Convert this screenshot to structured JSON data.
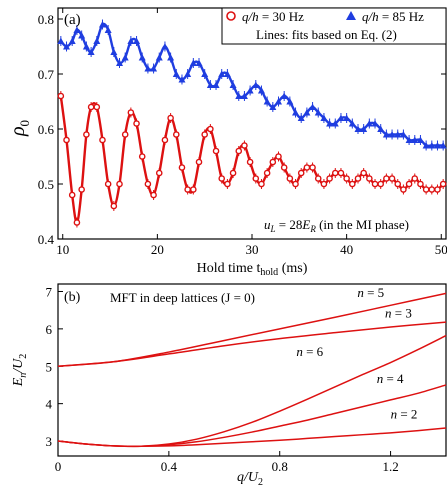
{
  "chart_data": [
    {
      "panel_label": "(a)",
      "type": "scatter",
      "xlabel": "Hold time t",
      "xlabel_sub": "hold",
      "xlabel_unit": " (ms)",
      "ylabel": "ρ",
      "ylabel_sub": "0",
      "xlim": [
        9.5,
        50.5
      ],
      "ylim": [
        0.4,
        0.82
      ],
      "xticks": [
        10,
        20,
        30,
        40,
        50
      ],
      "yticks": [
        0.4,
        0.5,
        0.6,
        0.7,
        0.8
      ],
      "ytick_labels": [
        "0.4",
        "0.5",
        "0.6",
        "0.7",
        "0.8"
      ],
      "legend": {
        "placement": "top-right",
        "entries": [
          {
            "prefix": "q/h",
            "suffix": " = 30 Hz",
            "marker": "open-circle",
            "color": "#dd1111"
          },
          {
            "prefix": "q/h",
            "suffix": " = 85 Hz",
            "marker": "filled-triangle",
            "color": "#1f3de0"
          }
        ],
        "note": "Lines: fits based on Eq. (2)"
      },
      "annotation": {
        "prefix": "u",
        "prefix_sub": "L",
        "middle": " = 28",
        "unit": "E",
        "unit_sub": "R",
        "suffix": " (in the MI phase)"
      },
      "series": [
        {
          "name": "q/h = 30 Hz",
          "color": "#dd1111",
          "marker": "open-circle",
          "x": [
            9.8,
            10.4,
            11.0,
            11.5,
            12.0,
            12.5,
            13.0,
            13.6,
            14.2,
            14.8,
            15.4,
            16.0,
            16.6,
            17.2,
            17.8,
            18.4,
            19.0,
            19.6,
            20.2,
            20.8,
            21.4,
            22.0,
            22.6,
            23.2,
            23.8,
            24.4,
            25.0,
            25.6,
            26.2,
            26.8,
            27.4,
            28.0,
            28.6,
            29.2,
            29.8,
            30.4,
            31.0,
            31.6,
            32.2,
            32.8,
            33.4,
            34.0,
            34.6,
            35.2,
            35.8,
            36.4,
            37.0,
            37.6,
            38.2,
            38.8,
            39.4,
            40.0,
            40.6,
            41.2,
            41.8,
            42.4,
            43.0,
            43.6,
            44.2,
            44.8,
            45.4,
            46.0,
            46.6,
            47.2,
            47.8,
            48.4,
            49.0,
            49.6,
            50.2
          ],
          "y": [
            0.66,
            0.58,
            0.48,
            0.43,
            0.49,
            0.59,
            0.64,
            0.64,
            0.58,
            0.5,
            0.46,
            0.5,
            0.59,
            0.63,
            0.61,
            0.55,
            0.5,
            0.48,
            0.52,
            0.58,
            0.62,
            0.59,
            0.53,
            0.49,
            0.49,
            0.54,
            0.59,
            0.6,
            0.56,
            0.51,
            0.5,
            0.52,
            0.56,
            0.57,
            0.54,
            0.51,
            0.5,
            0.52,
            0.54,
            0.55,
            0.53,
            0.51,
            0.5,
            0.52,
            0.53,
            0.53,
            0.51,
            0.5,
            0.51,
            0.52,
            0.52,
            0.51,
            0.5,
            0.51,
            0.52,
            0.51,
            0.5,
            0.5,
            0.51,
            0.51,
            0.5,
            0.49,
            0.5,
            0.51,
            0.5,
            0.49,
            0.49,
            0.49,
            0.5
          ]
        },
        {
          "name": "q/h = 85 Hz",
          "color": "#1f3de0",
          "marker": "filled-triangle",
          "x": [
            9.8,
            10.4,
            11.0,
            11.5,
            12.0,
            12.5,
            13.0,
            13.6,
            14.2,
            14.8,
            15.4,
            16.0,
            16.6,
            17.2,
            17.8,
            18.4,
            19.0,
            19.6,
            20.2,
            20.8,
            21.4,
            22.0,
            22.6,
            23.2,
            23.8,
            24.4,
            25.0,
            25.6,
            26.2,
            26.8,
            27.4,
            28.0,
            28.6,
            29.2,
            29.8,
            30.4,
            31.0,
            31.6,
            32.2,
            32.8,
            33.4,
            34.0,
            34.6,
            35.2,
            35.8,
            36.4,
            37.0,
            37.6,
            38.2,
            38.8,
            39.4,
            40.0,
            40.6,
            41.2,
            41.8,
            42.4,
            43.0,
            43.6,
            44.2,
            44.8,
            45.4,
            46.0,
            46.6,
            47.2,
            47.8,
            48.4,
            49.0,
            49.6,
            50.2
          ],
          "y": [
            0.76,
            0.75,
            0.76,
            0.78,
            0.77,
            0.75,
            0.74,
            0.76,
            0.79,
            0.78,
            0.74,
            0.72,
            0.73,
            0.76,
            0.76,
            0.73,
            0.71,
            0.71,
            0.73,
            0.75,
            0.73,
            0.7,
            0.69,
            0.7,
            0.72,
            0.72,
            0.7,
            0.68,
            0.68,
            0.7,
            0.7,
            0.68,
            0.66,
            0.66,
            0.67,
            0.68,
            0.67,
            0.65,
            0.64,
            0.65,
            0.66,
            0.65,
            0.63,
            0.62,
            0.63,
            0.64,
            0.63,
            0.62,
            0.61,
            0.61,
            0.62,
            0.62,
            0.61,
            0.6,
            0.6,
            0.61,
            0.61,
            0.6,
            0.59,
            0.59,
            0.59,
            0.59,
            0.58,
            0.58,
            0.58,
            0.57,
            0.57,
            0.57,
            0.57
          ]
        }
      ]
    },
    {
      "panel_label": "(b)",
      "type": "line",
      "title": "MFT in deep lattices (J = 0)",
      "xlabel": "q/U",
      "xlabel_sub": "2",
      "ylabel": "E",
      "ylabel_sub": "n",
      "ylabel_tail": "/U",
      "ylabel_tail_sub": "2",
      "xlim": [
        0,
        1.4
      ],
      "ylim": [
        2.6,
        7.2
      ],
      "xticks": [
        0,
        0.4,
        0.8,
        1.2
      ],
      "xtick_labels": [
        "0",
        "0.4",
        "0.8",
        "1.2"
      ],
      "yticks": [
        3,
        4,
        5,
        6,
        7
      ],
      "ytick_labels": [
        "3",
        "4",
        "5",
        "6",
        "7"
      ],
      "line_color": "#dd1111",
      "series": [
        {
          "name": "n = 5",
          "x": [
            0,
            0.2,
            0.4,
            0.6,
            0.8,
            1.0,
            1.2,
            1.4
          ],
          "y": [
            5.0,
            5.12,
            5.38,
            5.69,
            6.0,
            6.31,
            6.63,
            6.95
          ]
        },
        {
          "name": "n = 3",
          "x": [
            0,
            0.2,
            0.4,
            0.6,
            0.8,
            1.0,
            1.2,
            1.4
          ],
          "y": [
            5.0,
            5.12,
            5.33,
            5.55,
            5.74,
            5.9,
            6.05,
            6.18
          ]
        },
        {
          "name": "n = 6",
          "x": [
            0,
            0.1,
            0.2,
            0.3,
            0.4,
            0.5,
            0.6,
            0.7,
            0.8,
            0.9,
            1.0,
            1.1,
            1.2,
            1.3,
            1.4
          ],
          "y": [
            3.0,
            2.92,
            2.87,
            2.86,
            2.92,
            3.05,
            3.25,
            3.5,
            3.8,
            4.12,
            4.45,
            4.78,
            5.1,
            5.45,
            5.82
          ]
        },
        {
          "name": "n = 4",
          "x": [
            0,
            0.1,
            0.2,
            0.3,
            0.4,
            0.5,
            0.6,
            0.7,
            0.8,
            0.9,
            1.0,
            1.1,
            1.2,
            1.3,
            1.4
          ],
          "y": [
            3.0,
            2.92,
            2.87,
            2.86,
            2.9,
            2.98,
            3.1,
            3.24,
            3.4,
            3.56,
            3.74,
            3.92,
            4.1,
            4.28,
            4.5
          ]
        },
        {
          "name": "n = 2",
          "x": [
            0,
            0.1,
            0.2,
            0.3,
            0.4,
            0.5,
            0.6,
            0.7,
            0.8,
            0.9,
            1.0,
            1.1,
            1.2,
            1.3,
            1.4
          ],
          "y": [
            3.0,
            2.92,
            2.87,
            2.86,
            2.87,
            2.9,
            2.94,
            2.98,
            3.02,
            3.07,
            3.12,
            3.17,
            3.22,
            3.28,
            3.35
          ]
        }
      ],
      "curve_labels": [
        "n = 5",
        "n = 3",
        "n = 6",
        "n = 4",
        "n = 2"
      ]
    }
  ]
}
